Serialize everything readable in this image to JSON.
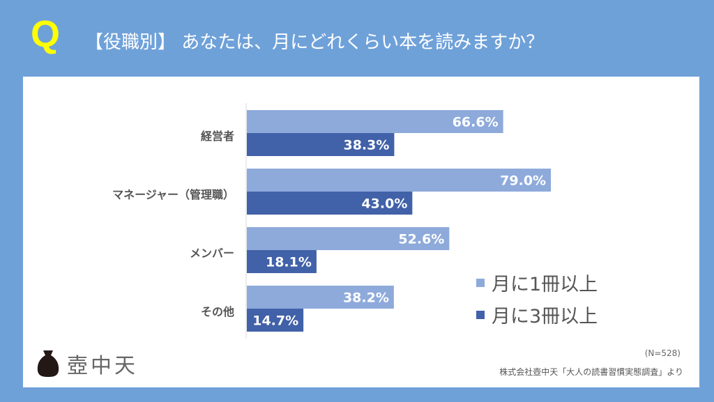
{
  "header": {
    "q_mark": "Q",
    "title": "【役職別】 あなたは、月にどれくらい本を読みますか？"
  },
  "chart_data": {
    "type": "bar",
    "orientation": "horizontal",
    "categories": [
      "経営者",
      "マネージャー（管理職）",
      "メンバー",
      "その他"
    ],
    "series": [
      {
        "name": "月に1冊以上",
        "color": "#8eaadb",
        "values": [
          66.6,
          79.0,
          52.6,
          38.2
        ],
        "labels": [
          "66.6%",
          "79.0%",
          "52.6%",
          "38.2%"
        ]
      },
      {
        "name": "月に3冊以上",
        "color": "#4161a8",
        "values": [
          38.3,
          43.0,
          18.1,
          14.7
        ],
        "labels": [
          "38.3%",
          "43.0%",
          "18.1%",
          "14.7%"
        ]
      }
    ],
    "xlim": [
      0,
      100
    ],
    "legend_position": "bottom-right",
    "grid": false
  },
  "footer": {
    "logo_text": "壺中天",
    "sample": "(N=528)",
    "source": "株式会社壺中天「大人の読書習慣実態調査」より"
  }
}
